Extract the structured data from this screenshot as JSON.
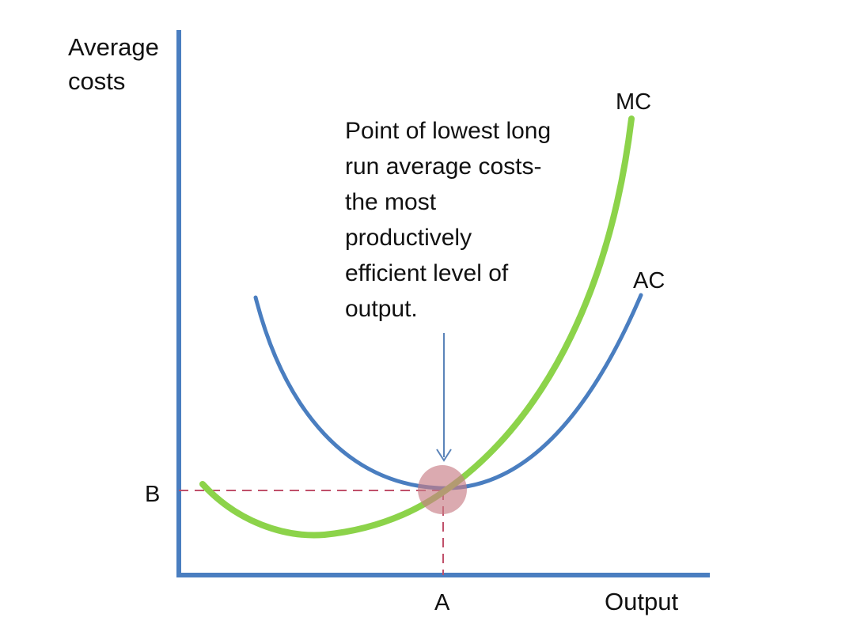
{
  "y_axis_label": [
    "Average",
    "costs"
  ],
  "x_axis_label": "Output",
  "curves": {
    "mc": {
      "label": "MC",
      "color": "#8CD34A"
    },
    "ac": {
      "label": "AC",
      "color": "#4A7EC0"
    }
  },
  "axis_color": "#4A7EC0",
  "guide_color": "#C0506A",
  "marker_color": "#C87C86",
  "points": {
    "y_level": "B",
    "x_level": "A"
  },
  "annotation": [
    "Point of lowest long",
    "run average costs-",
    "the most",
    "productively",
    "efficient level of",
    "output."
  ]
}
